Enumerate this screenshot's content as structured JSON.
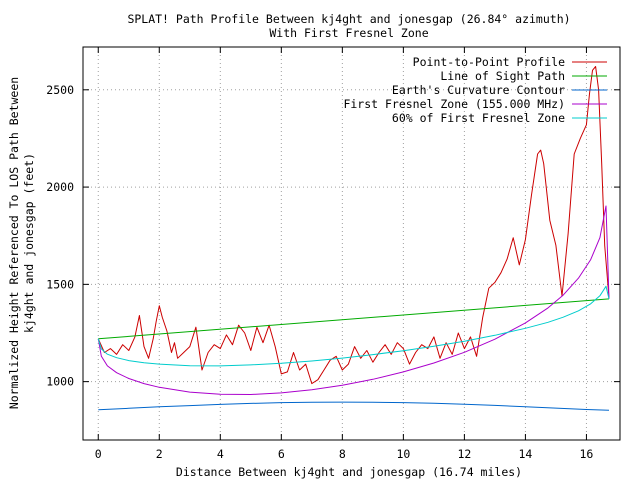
{
  "chart_data": {
    "type": "line",
    "title": "SPLAT! Path Profile Between kj4ght and jonesgap (26.84° azimuth)",
    "subtitle": "With First Fresnel Zone",
    "xlabel": "Distance Between kj4ght and jonesgap (16.74 miles)",
    "ylabel_line1": "Normalized Height Referenced To LOS Path Between",
    "ylabel_line2": "kj4ght and jonesgap (feet)",
    "xlim": [
      -0.5,
      17.1
    ],
    "ylim": [
      700,
      2720
    ],
    "x_ticks": [
      0,
      2,
      4,
      6,
      8,
      10,
      12,
      14,
      16
    ],
    "y_ticks": [
      1000,
      1500,
      2000,
      2500
    ],
    "grid": true,
    "legend_position": "top-right",
    "series": [
      {
        "name": "Point-to-Point Profile",
        "color": "#cc0000",
        "x": [
          0,
          0.2,
          0.4,
          0.6,
          0.8,
          1.0,
          1.2,
          1.35,
          1.5,
          1.65,
          1.8,
          1.9,
          2.0,
          2.1,
          2.25,
          2.4,
          2.5,
          2.6,
          2.8,
          3.0,
          3.2,
          3.4,
          3.6,
          3.8,
          4.0,
          4.2,
          4.4,
          4.6,
          4.8,
          5.0,
          5.2,
          5.4,
          5.6,
          5.8,
          6.0,
          6.2,
          6.4,
          6.6,
          6.8,
          7.0,
          7.2,
          7.4,
          7.6,
          7.8,
          8.0,
          8.2,
          8.4,
          8.6,
          8.8,
          9.0,
          9.2,
          9.4,
          9.6,
          9.8,
          10.0,
          10.2,
          10.4,
          10.6,
          10.8,
          11.0,
          11.2,
          11.4,
          11.6,
          11.8,
          12.0,
          12.2,
          12.4,
          12.6,
          12.8,
          13.0,
          13.2,
          13.4,
          13.6,
          13.8,
          14.0,
          14.2,
          14.4,
          14.5,
          14.6,
          14.8,
          15.0,
          15.2,
          15.4,
          15.6,
          15.8,
          16.0,
          16.1,
          16.2,
          16.3,
          16.4,
          16.5,
          16.6,
          16.74
        ],
        "y": [
          1220,
          1150,
          1170,
          1140,
          1190,
          1160,
          1230,
          1340,
          1180,
          1120,
          1220,
          1310,
          1390,
          1330,
          1260,
          1150,
          1200,
          1120,
          1150,
          1180,
          1280,
          1060,
          1150,
          1190,
          1170,
          1240,
          1190,
          1290,
          1250,
          1160,
          1280,
          1200,
          1290,
          1180,
          1040,
          1050,
          1150,
          1060,
          1090,
          990,
          1010,
          1060,
          1110,
          1130,
          1060,
          1090,
          1180,
          1120,
          1160,
          1100,
          1150,
          1190,
          1140,
          1200,
          1170,
          1090,
          1150,
          1190,
          1170,
          1230,
          1120,
          1200,
          1140,
          1250,
          1170,
          1230,
          1130,
          1330,
          1480,
          1510,
          1560,
          1630,
          1740,
          1600,
          1730,
          1960,
          2170,
          2190,
          2120,
          1830,
          1700,
          1440,
          1760,
          2170,
          2250,
          2320,
          2480,
          2600,
          2620,
          2500,
          2120,
          1700,
          1430
        ]
      },
      {
        "name": "Line of Sight Path",
        "color": "#00aa00",
        "x": [
          0,
          16.74
        ],
        "y": [
          1220,
          1425
        ]
      },
      {
        "name": "Earth's Curvature Contour",
        "color": "#0066cc",
        "x": [
          0,
          1,
          2,
          3,
          4,
          5,
          6,
          7,
          8,
          9,
          10,
          11,
          12,
          13,
          14,
          15,
          16,
          16.74
        ],
        "y": [
          855,
          863,
          871,
          877,
          883,
          888,
          892,
          894,
          895,
          894,
          892,
          889,
          884,
          878,
          871,
          864,
          857,
          853
        ]
      },
      {
        "name": "First Fresnel Zone (155.000 MHz)",
        "color": "#aa00cc",
        "x": [
          0,
          0.1,
          0.3,
          0.6,
          1,
          1.5,
          2,
          3,
          4,
          5,
          6,
          7,
          8,
          9,
          10,
          11,
          12,
          13,
          14,
          14.74,
          15.24,
          15.74,
          16.14,
          16.44,
          16.64,
          16.74
        ],
        "y": [
          1220,
          1131,
          1081,
          1046,
          1016,
          990,
          971,
          946,
          935,
          934,
          942,
          958,
          981,
          1012,
          1050,
          1096,
          1151,
          1218,
          1302,
          1379,
          1445,
          1532,
          1627,
          1740,
          1903,
          1425
        ]
      },
      {
        "name": "60% of First Fresnel Zone",
        "color": "#00cccc",
        "x": [
          0,
          0.1,
          0.3,
          0.6,
          1,
          1.5,
          2,
          3,
          4,
          5,
          6,
          7,
          8,
          9,
          10,
          11,
          12,
          13,
          14,
          14.74,
          15.24,
          15.74,
          16.14,
          16.44,
          16.64,
          16.74
        ],
        "y": [
          1220,
          1168,
          1141,
          1123,
          1108,
          1097,
          1090,
          1082,
          1081,
          1086,
          1094,
          1106,
          1121,
          1139,
          1159,
          1182,
          1208,
          1238,
          1274,
          1305,
          1331,
          1364,
          1400,
          1441,
          1490,
          1425
        ]
      }
    ]
  }
}
